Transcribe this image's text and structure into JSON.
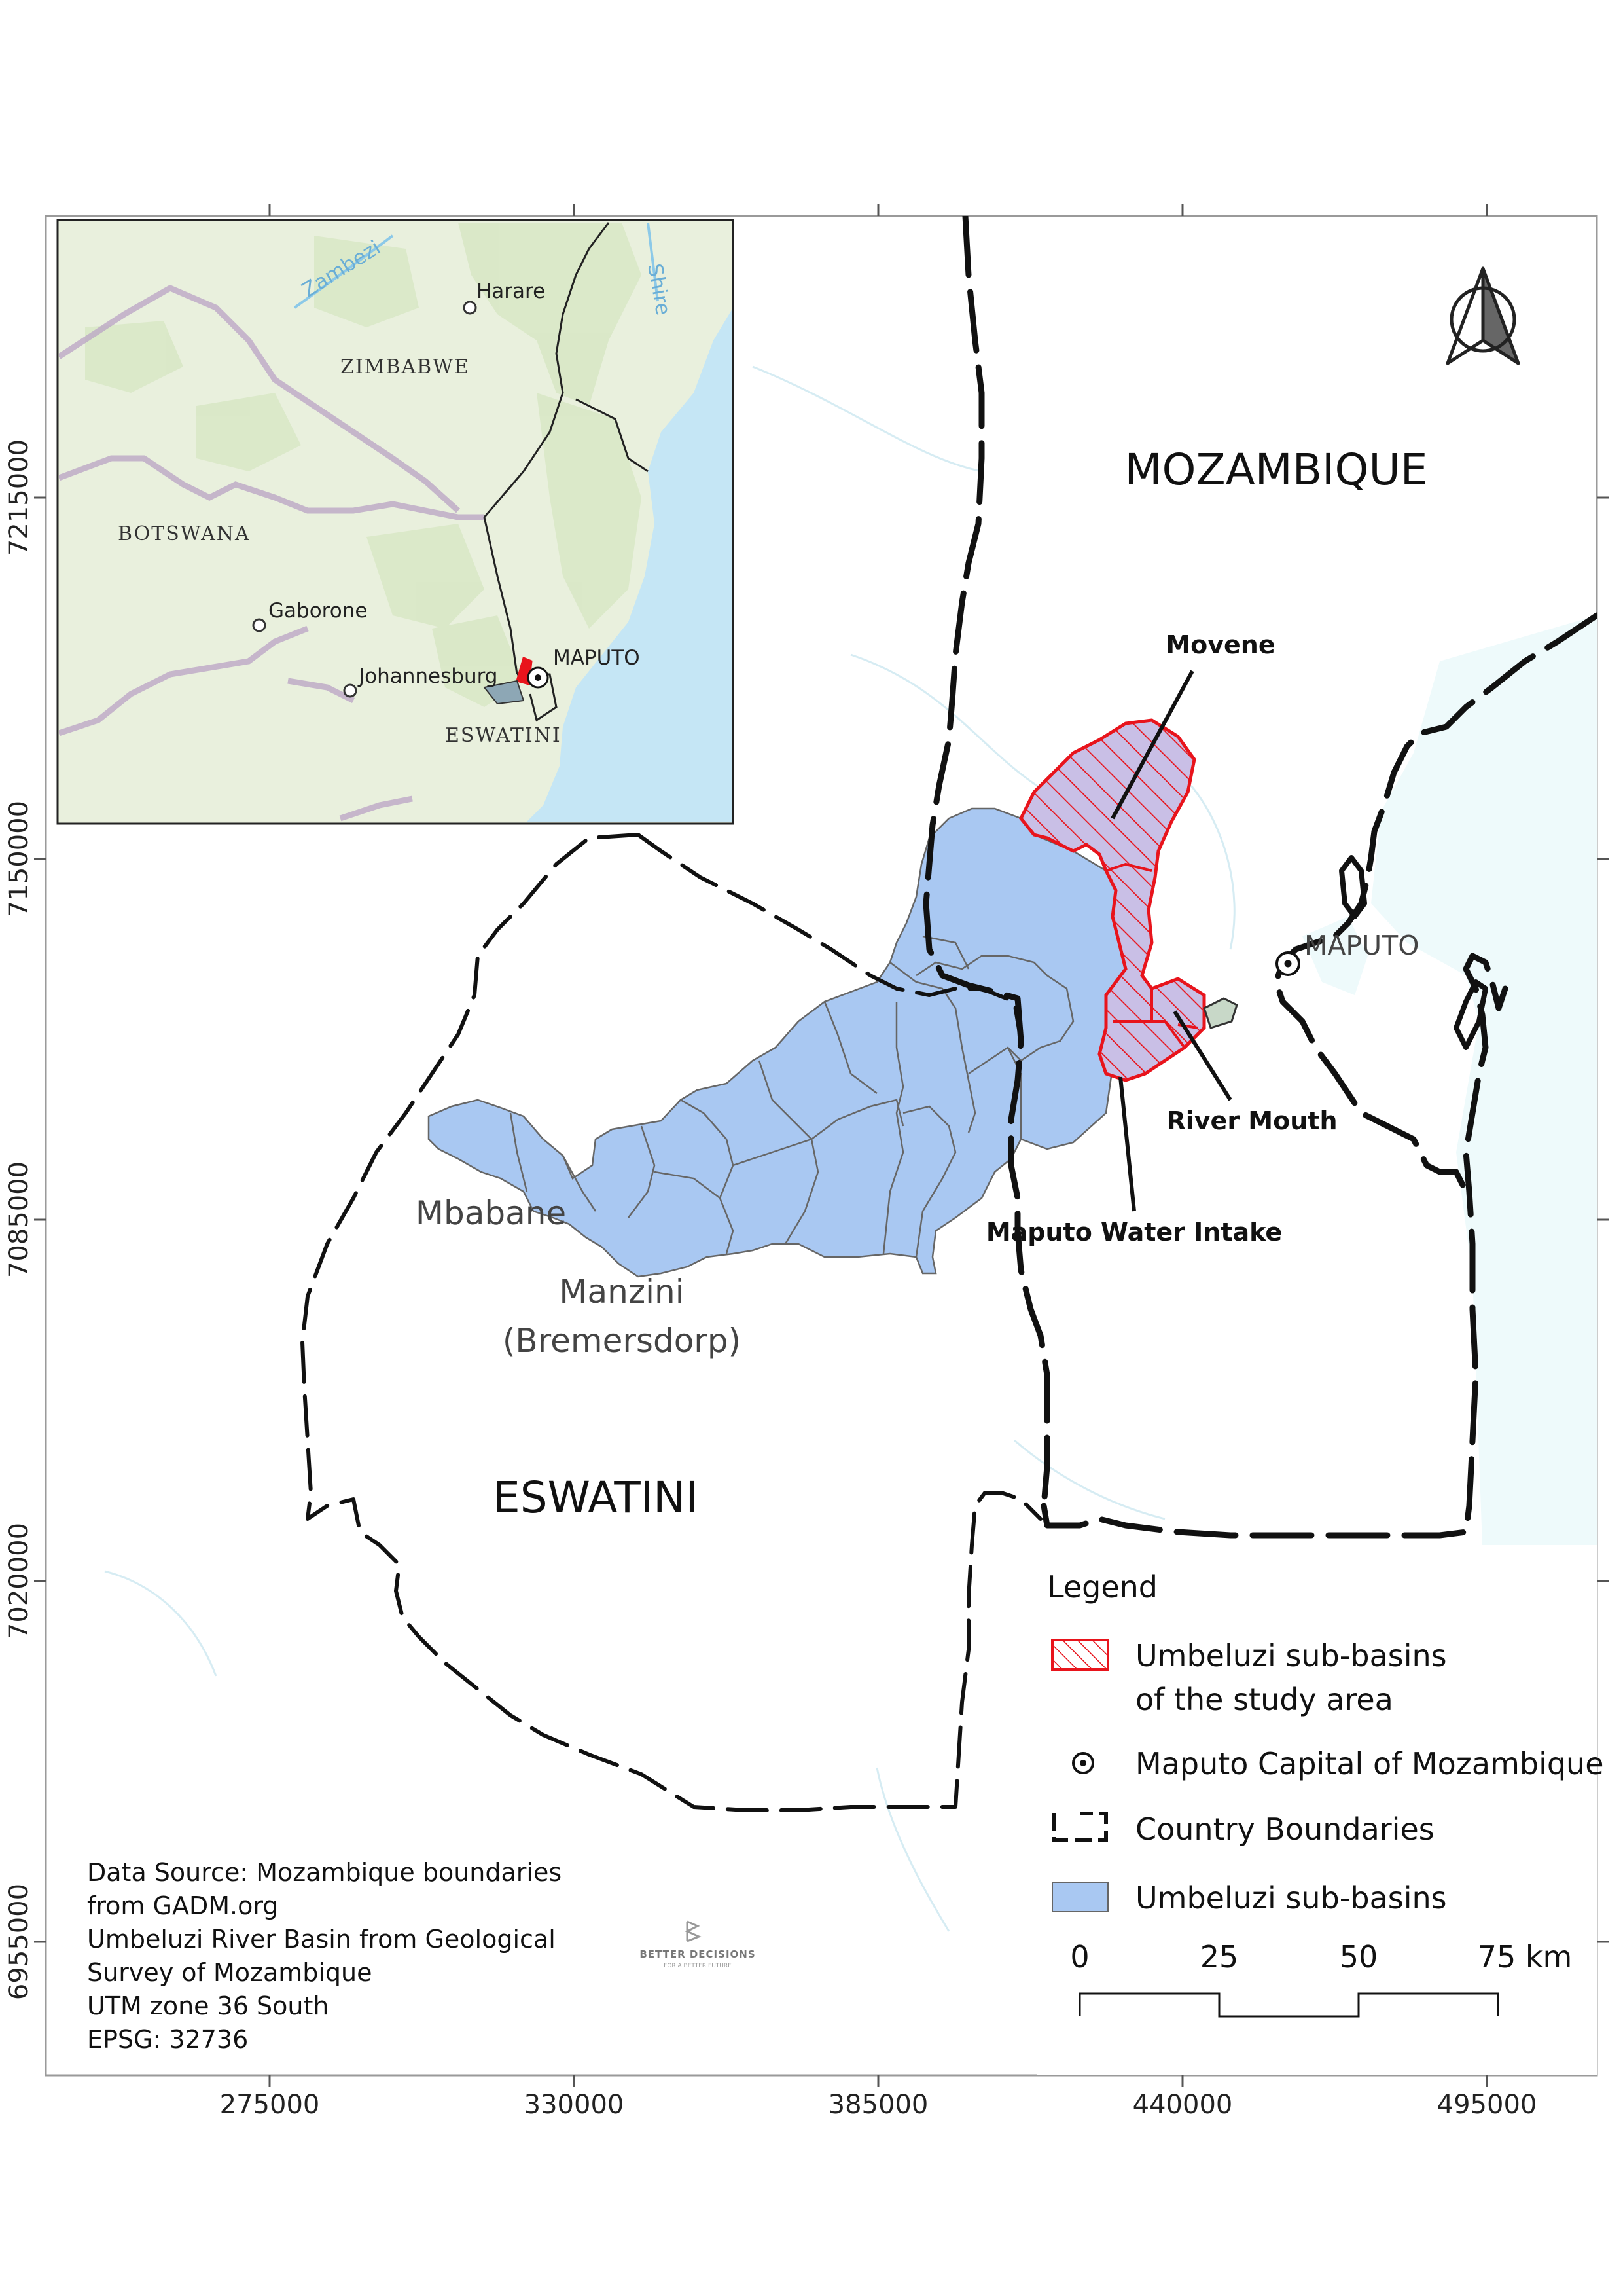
{
  "axes": {
    "x_ticks": [
      "275000",
      "330000",
      "385000",
      "440000",
      "495000"
    ],
    "y_ticks": [
      "7215000",
      "7150000",
      "7085000",
      "7020000",
      "6955000"
    ]
  },
  "labels": {
    "mozambique": "MOZAMBIQUE",
    "eswatini": "ESWATINI",
    "maputo": "MAPUTO",
    "mbabane": "Mbabane",
    "manzini_line1": "Manzini",
    "manzini_line2": "(Bremersdorp)"
  },
  "annotations": {
    "movene": "Movene",
    "river_mouth": "River Mouth",
    "intake": "Maputo Water Intake"
  },
  "inset": {
    "harare": "Harare",
    "zimbabwe": "ZIMBABWE",
    "botswana": "BOTSWANA",
    "gaborone": "Gaborone",
    "johannesburg": "Johannesburg",
    "maputo": "MAPUTO",
    "eswatini": "ESWATINI",
    "zambezi": "Zambezi",
    "shire": "Shire"
  },
  "legend": {
    "title": "Legend",
    "items": [
      {
        "label_line1": "Umbeluzi sub-basins",
        "label_line2": "of the study area"
      },
      {
        "label_line1": "Maputo Capital of Mozambique"
      },
      {
        "label_line1": "Country Boundaries"
      },
      {
        "label_line1": "Umbeluzi sub-basins"
      }
    ],
    "scale": [
      "0",
      "25",
      "50",
      "75 km"
    ]
  },
  "source": {
    "lines": [
      "Data Source: Mozambique boundaries",
      "from GADM.org",
      "Umbeluzi River Basin from Geological",
      "Survey of Mozambique",
      "UTM zone 36 South",
      "EPSG: 32736"
    ]
  },
  "logo": {
    "text": "BETTER DECISIONS",
    "subtext": "FOR A BETTER FUTURE"
  },
  "colors": {
    "basin_fill": "#a9c8f2",
    "study_area": "#e8141c",
    "ocean": "#eefafb",
    "inset_land": "#e9f0dd",
    "inset_ocean": "#c5e6f5"
  }
}
